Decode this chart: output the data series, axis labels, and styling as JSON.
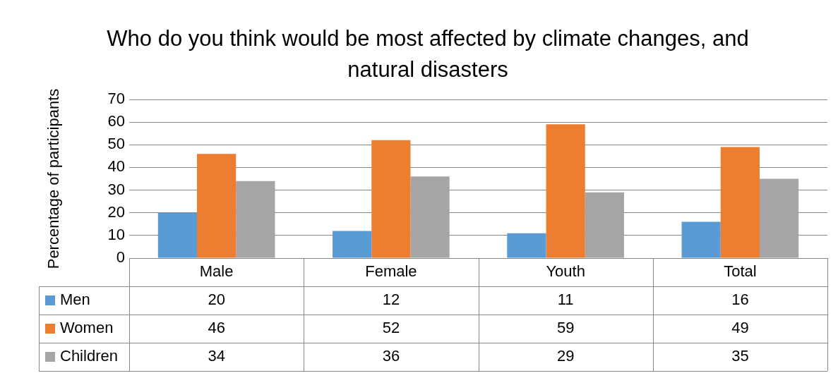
{
  "chart_data": {
    "type": "bar",
    "title": "Who do you think would be most affected by climate changes, and natural disasters",
    "ylabel": "Percentage of participants",
    "categories": [
      "Male",
      "Female",
      "Youth",
      "Total"
    ],
    "series": [
      {
        "name": "Men",
        "color": "#5b9bd5",
        "values": [
          20,
          12,
          11,
          16
        ]
      },
      {
        "name": "Women",
        "color": "#ed7d31",
        "values": [
          46,
          52,
          59,
          49
        ]
      },
      {
        "name": "Children",
        "color": "#a5a5a5",
        "values": [
          34,
          36,
          29,
          35
        ]
      }
    ],
    "ylim": [
      0,
      70
    ],
    "yticks": [
      0,
      10,
      20,
      30,
      40,
      50,
      60,
      70
    ],
    "grid": "y",
    "legend": "bottom",
    "data_labels": true
  }
}
